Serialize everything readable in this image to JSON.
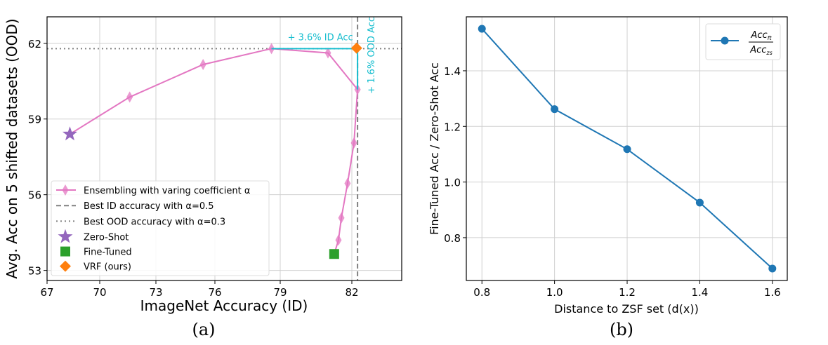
{
  "chart_data": [
    {
      "type": "scatter",
      "caption": "(a)",
      "xlabel": "ImageNet Accuracy (ID)",
      "ylabel": "Avg. Acc on 5 shifted datasets (OOD)",
      "xlim": [
        67,
        84.1
      ],
      "ylim": [
        52.6,
        63.05
      ],
      "xticks": [
        67,
        70,
        73,
        76,
        79,
        82
      ],
      "yticks": [
        53,
        56,
        59,
        62
      ],
      "grid": true,
      "legend_position": "lower-left",
      "series": [
        {
          "name": "Ensembling with varing coefficient α",
          "type": "line",
          "marker": "thin-diamond",
          "color": "#e377c2",
          "x": [
            68.3,
            71.6,
            75.4,
            78.6,
            81.0,
            82.24,
            82.09,
            81.82,
            81.56,
            81.44,
            81.26
          ],
          "y": [
            58.4,
            59.87,
            61.16,
            61.79,
            61.62,
            60.17,
            58.05,
            56.45,
            55.08,
            54.2,
            53.65
          ],
          "marker_points": 9
        },
        {
          "name": "Zero-Shot",
          "type": "marker",
          "marker": "star",
          "color": "#9467bd",
          "x": [
            68.3
          ],
          "y": [
            58.4
          ]
        },
        {
          "name": "Fine-Tuned",
          "type": "marker",
          "marker": "square",
          "color": "#2ca02c",
          "x": [
            81.26
          ],
          "y": [
            53.65
          ]
        },
        {
          "name": "VRF (ours)",
          "type": "marker",
          "marker": "diamond",
          "color": "#ff7f0e",
          "x": [
            82.2
          ],
          "y": [
            61.81
          ]
        }
      ],
      "reference_lines": [
        {
          "name": "Best ID accuracy with α=0.5",
          "orientation": "vertical",
          "value": 82.24,
          "style": "dashed",
          "color": "#808080"
        },
        {
          "name": "Best OOD accuracy with α=0.3",
          "orientation": "horizontal",
          "value": 61.79,
          "style": "dotted",
          "color": "#808080"
        }
      ],
      "annotations": [
        {
          "text": "+ 3.6% ID Acc",
          "color": "#17becf",
          "from": [
            78.6,
            61.79
          ],
          "to": [
            82.2,
            61.79
          ]
        },
        {
          "text": "+ 1.6% OOD Acc",
          "color": "#17becf",
          "from": [
            82.24,
            60.17
          ],
          "to": [
            82.24,
            61.79
          ]
        }
      ]
    },
    {
      "type": "line",
      "caption": "(b)",
      "xlabel": "Distance to ZSF set (d(x))",
      "ylabel": "Fine-Tuned Acc / Zero-Shot Acc",
      "xlim": [
        0.757,
        1.641
      ],
      "ylim": [
        0.646,
        1.594
      ],
      "xticks": [
        "0.8",
        "1.0",
        "1.2",
        "1.4",
        "1.6"
      ],
      "yticks": [
        "0.8",
        "1.0",
        "1.2",
        "1.4"
      ],
      "grid": true,
      "legend_position": "top-right",
      "series": [
        {
          "name_numerator": "Acc_ft",
          "name_denominator": "Acc_zs",
          "color": "#1f77b4",
          "x": [
            0.8,
            1.0,
            1.2,
            1.4,
            1.6
          ],
          "y": [
            1.551,
            1.262,
            1.118,
            0.926,
            0.689
          ]
        }
      ]
    }
  ]
}
